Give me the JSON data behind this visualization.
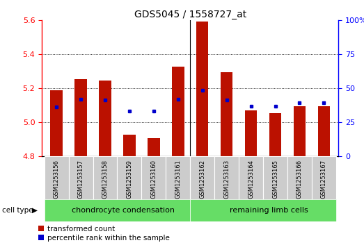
{
  "title": "GDS5045 / 1558727_at",
  "samples": [
    "GSM1253156",
    "GSM1253157",
    "GSM1253158",
    "GSM1253159",
    "GSM1253160",
    "GSM1253161",
    "GSM1253162",
    "GSM1253163",
    "GSM1253164",
    "GSM1253165",
    "GSM1253166",
    "GSM1253167"
  ],
  "red_values": [
    5.19,
    5.255,
    5.245,
    4.925,
    4.905,
    5.325,
    5.59,
    5.295,
    5.07,
    5.055,
    5.095,
    5.095
  ],
  "blue_values": [
    5.09,
    5.135,
    5.13,
    5.065,
    5.065,
    5.135,
    5.19,
    5.13,
    5.095,
    5.095,
    5.115,
    5.115
  ],
  "y_min": 4.8,
  "y_max": 5.6,
  "y_ticks_left": [
    4.8,
    5.0,
    5.2,
    5.4,
    5.6
  ],
  "y_ticks_right_pct": [
    0,
    25,
    50,
    75,
    100
  ],
  "group1_label": "chondrocyte condensation",
  "group2_label": "remaining limb cells",
  "group1_count": 6,
  "group2_count": 6,
  "cell_type_label": "cell type",
  "legend_red": "transformed count",
  "legend_blue": "percentile rank within the sample",
  "bar_color": "#BB1100",
  "dot_color": "#0000CC",
  "group_bg": "#66DD66",
  "sample_bg": "#CCCCCC",
  "fig_bg": "#FFFFFF",
  "separator_color": "#000000",
  "bar_width": 0.5
}
